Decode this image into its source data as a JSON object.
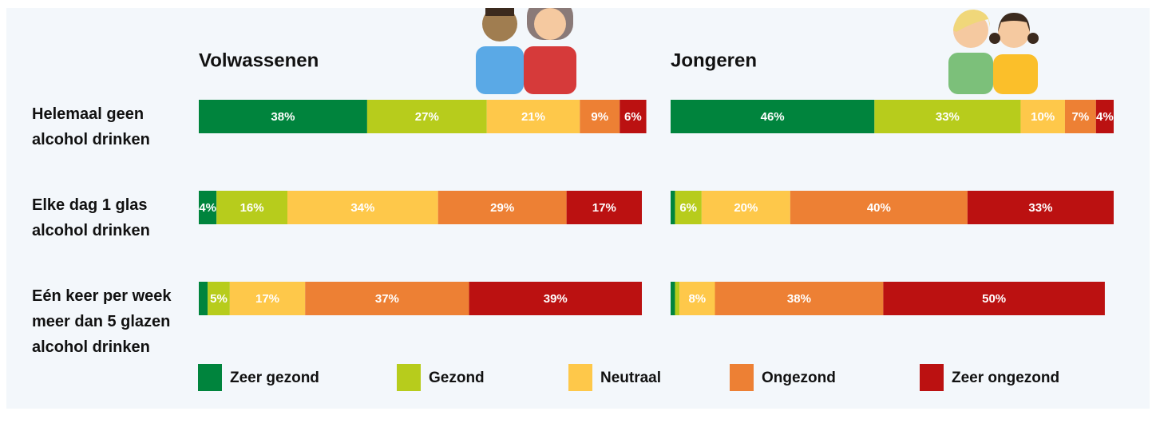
{
  "chart_data": {
    "type": "bar",
    "orientation": "horizontal",
    "stacked": true,
    "categories": [
      "Helemaal geen alcohol drinken",
      "Elke dag 1 glas alcohol drinken",
      "Eén keer per week meer dan 5 glazen alcohol drinken"
    ],
    "legend": [
      {
        "name": "Zeer gezond",
        "color": "#00843d"
      },
      {
        "name": "Gezond",
        "color": "#b7cc1c"
      },
      {
        "name": "Neutraal",
        "color": "#fec84a"
      },
      {
        "name": "Ongezond",
        "color": "#ed8034"
      },
      {
        "name": "Zeer ongezond",
        "color": "#bb1111"
      }
    ],
    "panels": [
      {
        "title": "Volwassenen",
        "values": [
          [
            38,
            27,
            21,
            9,
            6
          ],
          [
            4,
            16,
            34,
            29,
            17
          ],
          [
            2,
            5,
            17,
            37,
            39
          ]
        ],
        "value_labels": [
          [
            "38%",
            "27%",
            "21%",
            "9%",
            "6%"
          ],
          [
            "4%",
            "16%",
            "34%",
            "29%",
            "17%"
          ],
          [
            null,
            "5%",
            "17%",
            "37%",
            "39%"
          ]
        ]
      },
      {
        "title": "Jongeren",
        "values": [
          [
            46,
            33,
            10,
            7,
            4
          ],
          [
            1,
            6,
            20,
            40,
            33
          ],
          [
            1,
            1,
            8,
            38,
            50
          ]
        ],
        "value_labels": [
          [
            "46%",
            "33%",
            "10%",
            "7%",
            "4%"
          ],
          [
            null,
            "6%",
            "20%",
            "40%",
            "33%"
          ],
          [
            null,
            null,
            "8%",
            "38%",
            "50%"
          ]
        ]
      }
    ]
  }
}
